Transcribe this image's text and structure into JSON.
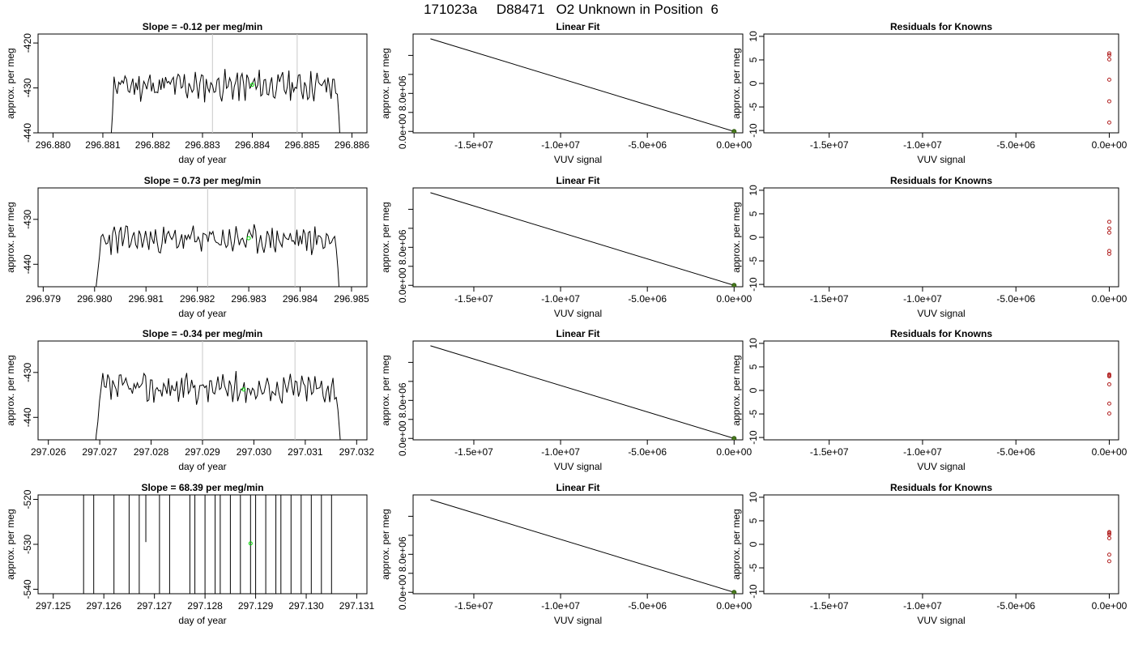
{
  "page_title": "171023a     D88471   O2 Unknown in Position  6",
  "colors": {
    "trace": "#000000",
    "marker_green": "#00e000",
    "fit_point_fill": "#4a7a1e",
    "residual_points": "#b22222",
    "vertical_lines": "#c8c8c8",
    "frame": "#000000"
  },
  "chart_data": [
    {
      "type": "line",
      "title": "Slope =  -0.12  per meg/min",
      "xlabel": "day of year",
      "ylabel": "approx. per meg",
      "xlim": [
        296.8797,
        296.8863
      ],
      "ylim": [
        -440,
        -418
      ],
      "xticks": [
        296.88,
        296.881,
        296.882,
        296.883,
        296.884,
        296.885,
        296.886
      ],
      "xtick_labels": [
        "296.880",
        "296.881",
        "296.882",
        "296.883",
        "296.884",
        "296.885",
        "296.886"
      ],
      "yticks": [
        -440,
        -430,
        -420
      ],
      "ytick_labels": [
        "-440",
        "-430",
        "-420"
      ],
      "vlines": [
        296.8832,
        296.8849
      ],
      "trace": {
        "x_start": 296.8811,
        "x_end": 296.8858,
        "mean": -429.5,
        "amp": 2.6,
        "seed": 11,
        "ramp_from": -450,
        "ramp_to": -444
      },
      "green_point": {
        "x": 296.884,
        "y": -429.3
      }
    },
    {
      "type": "line",
      "title": "Linear Fit",
      "xlabel": "VUV signal",
      "ylabel": "approx. per meg",
      "xlim": [
        -18500000,
        500000
      ],
      "ylim": [
        -300000,
        20500000
      ],
      "xticks": [
        -15000000,
        -10000000,
        -5000000,
        0
      ],
      "xtick_labels": [
        "-1.5e+07",
        "-1.0e+07",
        "-5.0e+06",
        "0.0e+00"
      ],
      "yticks": [
        0,
        4000000,
        8000000,
        12000000,
        16000000
      ],
      "ytick_labels": [
        "0.0e+00",
        "",
        "8.0e+06",
        "",
        ""
      ],
      "line": {
        "x": [
          -17500000,
          0
        ],
        "y": [
          19500000,
          0
        ]
      },
      "point": {
        "x": 0,
        "y": 0
      }
    },
    {
      "type": "scatter",
      "title": "Residuals for Knowns",
      "xlabel": "VUV signal",
      "ylabel": "approx. per meg",
      "xlim": [
        -18500000,
        500000
      ],
      "ylim": [
        -10.5,
        10.5
      ],
      "xticks": [
        -15000000,
        -10000000,
        -5000000,
        0
      ],
      "xtick_labels": [
        "-1.5e+07",
        "-1.0e+07",
        "-5.0e+06",
        "0.0e+00"
      ],
      "yticks": [
        -10,
        -5,
        0,
        5,
        10
      ],
      "ytick_labels": [
        "-10",
        "-5",
        "0",
        "5",
        "10"
      ],
      "points": {
        "x": [
          0,
          0,
          0,
          0,
          0,
          0
        ],
        "y": [
          6.4,
          5.1,
          0.8,
          -3.8,
          -8.3,
          6.0
        ]
      }
    },
    {
      "type": "line",
      "title": "Slope =  0.73  per meg/min",
      "xlabel": "day of year",
      "ylabel": "approx. per meg",
      "xlim": [
        296.9789,
        296.9853
      ],
      "ylim": [
        -445,
        -423
      ],
      "xticks": [
        296.979,
        296.98,
        296.981,
        296.982,
        296.983,
        296.984,
        296.985
      ],
      "xtick_labels": [
        "296.979",
        "296.980",
        "296.981",
        "296.982",
        "296.983",
        "296.984",
        "296.985"
      ],
      "yticks": [
        -440,
        -430
      ],
      "ytick_labels": [
        "-440",
        "-430"
      ],
      "vlines": [
        296.9822,
        296.9839
      ],
      "trace": {
        "x_start": 296.98,
        "x_end": 296.9848,
        "mean": -434.5,
        "amp": 2.4,
        "seed": 23,
        "ramp_from": -450,
        "ramp_to": -448
      },
      "green_point": {
        "x": 296.983,
        "y": -434.2
      }
    },
    {
      "type": "line",
      "title": "Linear Fit",
      "xlabel": "VUV signal",
      "ylabel": "approx. per meg",
      "xlim": [
        -18500000,
        500000
      ],
      "ylim": [
        -300000,
        20500000
      ],
      "xticks": [
        -15000000,
        -10000000,
        -5000000,
        0
      ],
      "xtick_labels": [
        "-1.5e+07",
        "-1.0e+07",
        "-5.0e+06",
        "0.0e+00"
      ],
      "yticks": [
        0,
        4000000,
        8000000,
        12000000,
        16000000
      ],
      "ytick_labels": [
        "0.0e+00",
        "",
        "8.0e+06",
        "",
        ""
      ],
      "line": {
        "x": [
          -17500000,
          0
        ],
        "y": [
          19500000,
          0
        ]
      },
      "point": {
        "x": 0,
        "y": 0
      }
    },
    {
      "type": "scatter",
      "title": "Residuals for Knowns",
      "xlabel": "VUV signal",
      "ylabel": "approx. per meg",
      "xlim": [
        -18500000,
        500000
      ],
      "ylim": [
        -10.5,
        10.5
      ],
      "xticks": [
        -15000000,
        -10000000,
        -5000000,
        0
      ],
      "xtick_labels": [
        "-1.5e+07",
        "-1.0e+07",
        "-5.0e+06",
        "0.0e+00"
      ],
      "yticks": [
        -10,
        -5,
        0,
        5,
        10
      ],
      "ytick_labels": [
        "-10",
        "-5",
        "0",
        "5",
        "10"
      ],
      "points": {
        "x": [
          0,
          0,
          0,
          0,
          0
        ],
        "y": [
          3.3,
          1.9,
          1.0,
          -2.9,
          -3.5
        ]
      }
    },
    {
      "type": "line",
      "title": "Slope =  -0.34  per meg/min",
      "xlabel": "day of year",
      "ylabel": "approx. per meg",
      "xlim": [
        297.0258,
        297.0322
      ],
      "ylim": [
        -445,
        -423
      ],
      "xticks": [
        297.026,
        297.027,
        297.028,
        297.029,
        297.03,
        297.031,
        297.032
      ],
      "xtick_labels": [
        "297.026",
        "297.027",
        "297.028",
        "297.029",
        "297.030",
        "297.031",
        "297.032"
      ],
      "yticks": [
        -440,
        -430
      ],
      "ytick_labels": [
        "-440",
        "-430"
      ],
      "vlines": [
        297.029,
        297.0308
      ],
      "trace": {
        "x_start": 297.0269,
        "x_end": 297.0317,
        "mean": -433.5,
        "amp": 2.6,
        "seed": 37,
        "ramp_from": -450,
        "ramp_to": -442
      },
      "green_point": {
        "x": 297.0298,
        "y": -433.8
      }
    },
    {
      "type": "line",
      "title": "Linear Fit",
      "xlabel": "VUV signal",
      "ylabel": "approx. per meg",
      "xlim": [
        -18500000,
        500000
      ],
      "ylim": [
        -300000,
        20500000
      ],
      "xticks": [
        -15000000,
        -10000000,
        -5000000,
        0
      ],
      "xtick_labels": [
        "-1.5e+07",
        "-1.0e+07",
        "-5.0e+06",
        "0.0e+00"
      ],
      "yticks": [
        0,
        4000000,
        8000000,
        12000000,
        16000000
      ],
      "ytick_labels": [
        "0.0e+00",
        "",
        "8.0e+06",
        "",
        ""
      ],
      "line": {
        "x": [
          -17500000,
          0
        ],
        "y": [
          19500000,
          0
        ]
      },
      "point": {
        "x": 0,
        "y": 0
      }
    },
    {
      "type": "scatter",
      "title": "Residuals for Knowns",
      "xlabel": "VUV signal",
      "ylabel": "approx. per meg",
      "xlim": [
        -18500000,
        500000
      ],
      "ylim": [
        -10.5,
        10.5
      ],
      "xticks": [
        -15000000,
        -10000000,
        -5000000,
        0
      ],
      "xtick_labels": [
        "-1.5e+07",
        "-1.0e+07",
        "-5.0e+06",
        "0.0e+00"
      ],
      "yticks": [
        -10,
        -5,
        0,
        5,
        10
      ],
      "ytick_labels": [
        "-10",
        "-5",
        "0",
        "5",
        "10"
      ],
      "points": {
        "x": [
          0,
          0,
          0,
          0,
          0,
          0
        ],
        "y": [
          3.4,
          3.0,
          1.3,
          -2.8,
          -4.9,
          3.2
        ]
      }
    },
    {
      "type": "line",
      "title": "Slope =  68.39  per meg/min",
      "xlabel": "day of year",
      "ylabel": "approx. per meg",
      "xlim": [
        297.1247,
        297.1312
      ],
      "ylim": [
        -541,
        -519
      ],
      "xticks": [
        297.125,
        297.126,
        297.127,
        297.128,
        297.129,
        297.13,
        297.131
      ],
      "xtick_labels": [
        "297.125",
        "297.126",
        "297.127",
        "297.128",
        "297.129",
        "297.130",
        "297.131"
      ],
      "yticks": [
        -540,
        -530,
        -520
      ],
      "ytick_labels": [
        "-540",
        "-530",
        "-520"
      ],
      "spikes": [
        297.1256,
        297.1258,
        297.1262,
        297.1265,
        297.1267,
        297.1271,
        297.1273,
        297.1277,
        297.1278,
        297.128,
        297.1282,
        297.1283,
        297.1285,
        297.1287,
        297.1289,
        297.129,
        297.1292,
        297.1294,
        297.1295,
        297.1297,
        297.1299,
        297.1301,
        297.1303,
        297.1305
      ],
      "green_point": {
        "x": 297.1289,
        "y": -529.8
      }
    },
    {
      "type": "line",
      "title": "Linear Fit",
      "xlabel": "VUV signal",
      "ylabel": "approx. per meg",
      "xlim": [
        -18500000,
        500000
      ],
      "ylim": [
        -300000,
        20500000
      ],
      "xticks": [
        -15000000,
        -10000000,
        -5000000,
        0
      ],
      "xtick_labels": [
        "-1.5e+07",
        "-1.0e+07",
        "-5.0e+06",
        "0.0e+00"
      ],
      "yticks": [
        0,
        4000000,
        8000000,
        12000000,
        16000000
      ],
      "ytick_labels": [
        "0.0e+00",
        "",
        "8.0e+06",
        "",
        ""
      ],
      "line": {
        "x": [
          -17500000,
          0
        ],
        "y": [
          19500000,
          0
        ]
      },
      "point": {
        "x": 0,
        "y": 0
      }
    },
    {
      "type": "scatter",
      "title": "Residuals for Knowns",
      "xlabel": "VUV signal",
      "ylabel": "approx. per meg",
      "xlim": [
        -18500000,
        500000
      ],
      "ylim": [
        -10.5,
        10.5
      ],
      "xticks": [
        -15000000,
        -10000000,
        -5000000,
        0
      ],
      "xtick_labels": [
        "-1.5e+07",
        "-1.0e+07",
        "-5.0e+06",
        "0.0e+00"
      ],
      "yticks": [
        -10,
        -5,
        0,
        5,
        10
      ],
      "ytick_labels": [
        "-10",
        "-5",
        "0",
        "5",
        "10"
      ],
      "points": {
        "x": [
          0,
          0,
          0,
          0,
          0,
          0
        ],
        "y": [
          2.4,
          2.1,
          1.3,
          -2.2,
          -3.6,
          2.6
        ]
      }
    }
  ]
}
